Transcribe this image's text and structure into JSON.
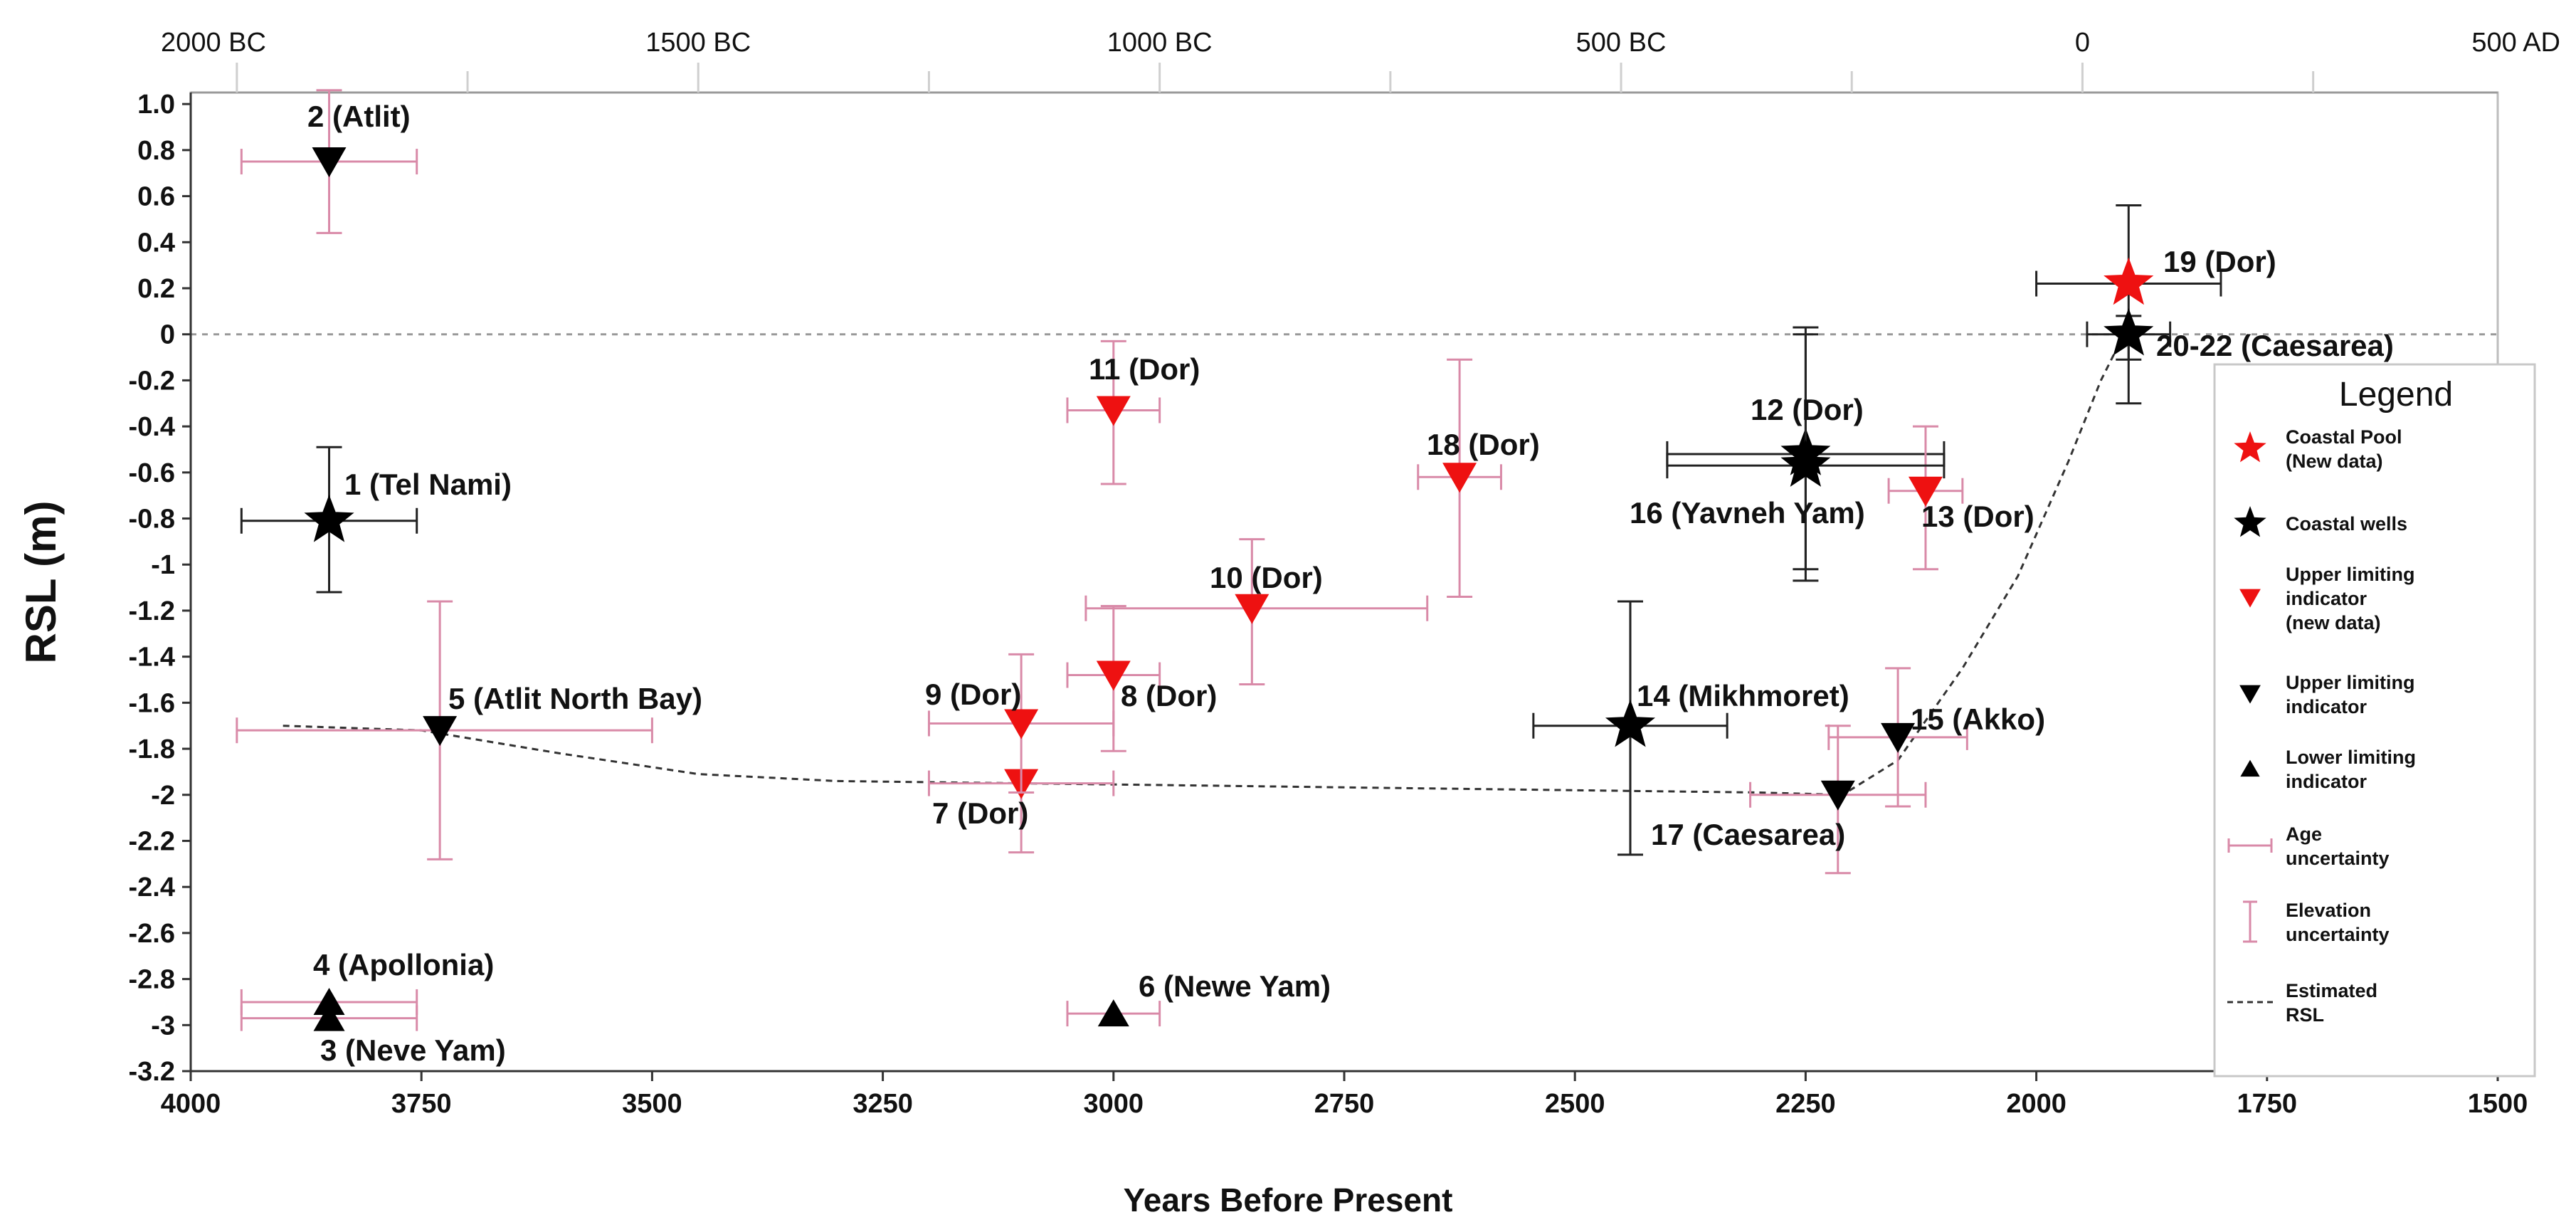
{
  "chart_data": {
    "type": "scatter",
    "xlabel": "Years Before Present",
    "ylabel": "RSL (m)",
    "xlim": [
      4000,
      1500
    ],
    "ylim": [
      -3.2,
      1.05
    ],
    "x_ticks": [
      4000,
      3750,
      3500,
      3250,
      3000,
      2750,
      2500,
      2250,
      2000,
      1750,
      1500
    ],
    "y_ticks": [
      "1.0",
      "0.8",
      "0.6",
      "0.4",
      "0.2",
      "0",
      "-0.2",
      "-0.4",
      "-0.6",
      "-0.8",
      "-1",
      "-1.2",
      "-1.4",
      "-1.6",
      "-1.8",
      "-2",
      "-2.2",
      "-2.4",
      "-2.6",
      "-2.8",
      "-3",
      "-3.2"
    ],
    "top_axis": [
      {
        "label": "2000 BC",
        "x": 3950
      },
      {
        "label": "1500 BC",
        "x": 3450
      },
      {
        "label": "1000 BC",
        "x": 2950
      },
      {
        "label": "500 BC",
        "x": 2450
      },
      {
        "label": "0",
        "x": 1950
      },
      {
        "label": "500 AD",
        "x": 1450
      }
    ],
    "top_minor_ticks": [
      3700,
      3200,
      2700,
      2200,
      1700
    ],
    "zero_line": 0,
    "points": [
      {
        "id": "1",
        "label": "1 (Tel Nami)",
        "site": "Tel Nami",
        "type": "well",
        "x": 3850,
        "y": -0.81,
        "xerr": 95,
        "yerr_hi": 0.32,
        "yerr_lo": 0.31,
        "color": "#000000"
      },
      {
        "id": "2",
        "label": "2 (Atlit)",
        "site": "Atlit",
        "type": "upper",
        "x": 3850,
        "y": 0.75,
        "xerr": 95,
        "yerr_hi": 0.31,
        "yerr_lo": 0.31,
        "color": "#000000"
      },
      {
        "id": "3",
        "label": "3 (Neve Yam)",
        "site": "Neve Yam",
        "type": "lower",
        "x": 3850,
        "y": -2.97,
        "xerr": 95,
        "color": "#000000"
      },
      {
        "id": "4",
        "label": "4 (Apollonia)",
        "site": "Apollonia",
        "type": "lower",
        "x": 3850,
        "y": -2.9,
        "xerr": 95,
        "color": "#000000"
      },
      {
        "id": "5",
        "label": "5 (Atlit North Bay)",
        "site": "Atlit North Bay",
        "type": "upper",
        "x": 3730,
        "y": -1.72,
        "xerr_left": 220,
        "xerr_right": 230,
        "yerr_hi": 0.56,
        "yerr_lo": 0.56,
        "color": "#000000"
      },
      {
        "id": "6",
        "label": "6 (Newe Yam)",
        "site": "Newe Yam",
        "type": "lower",
        "x": 3000,
        "y": -2.95,
        "xerr": 50,
        "color": "#000000"
      },
      {
        "id": "7",
        "label": "7 (Dor)",
        "site": "Dor",
        "type": "upper_new",
        "x": 3100,
        "y": -1.95,
        "xerr": 100,
        "yerr_hi": 0.0,
        "yerr_lo": 0.3,
        "color": "#ee1111"
      },
      {
        "id": "8",
        "label": "8 (Dor)",
        "site": "Dor",
        "type": "upper_new",
        "x": 3000,
        "y": -1.48,
        "xerr": 50,
        "yerr_hi": 0.3,
        "yerr_lo": 0.33,
        "color": "#ee1111"
      },
      {
        "id": "9",
        "label": "9 (Dor)",
        "site": "Dor",
        "type": "upper_new",
        "x": 3100,
        "y": -1.69,
        "xerr": 100,
        "yerr_hi": 0.3,
        "yerr_lo": 0.3,
        "color": "#ee1111"
      },
      {
        "id": "10",
        "label": "10 (Dor)",
        "site": "Dor",
        "type": "upper_new",
        "x": 2850,
        "y": -1.19,
        "xerr_left": 180,
        "xerr_right": 190,
        "yerr_hi": 0.3,
        "yerr_lo": 0.33,
        "color": "#ee1111"
      },
      {
        "id": "11",
        "label": "11 (Dor)",
        "site": "Dor",
        "type": "upper_new",
        "x": 3000,
        "y": -0.33,
        "xerr": 50,
        "yerr_hi": 0.3,
        "yerr_lo": 0.32,
        "color": "#ee1111"
      },
      {
        "id": "12",
        "label": "12 (Dor)",
        "site": "Dor",
        "type": "well",
        "x": 2250,
        "y": -0.52,
        "xerr": 150,
        "yerr_hi": 0.52,
        "yerr_lo": 0.5,
        "color": "#000000"
      },
      {
        "id": "13",
        "label": "13 (Dor)",
        "site": "Dor",
        "type": "upper_new",
        "x": 2120,
        "y": -0.68,
        "xerr": 40,
        "yerr_hi": 0.28,
        "yerr_lo": 0.34,
        "color": "#ee1111"
      },
      {
        "id": "14",
        "label": "14 (Mikhmoret)",
        "site": "Mikhmoret",
        "type": "well",
        "x": 2440,
        "y": -1.7,
        "xerr": 105,
        "yerr_hi": 0.54,
        "yerr_lo": 0.56,
        "color": "#000000"
      },
      {
        "id": "15",
        "label": "15 (Akko)",
        "site": "Akko",
        "type": "upper",
        "x": 2150,
        "y": -1.75,
        "xerr": 75,
        "yerr_hi": 0.3,
        "yerr_lo": 0.3,
        "color": "#000000"
      },
      {
        "id": "16",
        "label": "16 (Yavneh Yam)",
        "site": "Yavneh Yam",
        "type": "well",
        "x": 2250,
        "y": -0.57,
        "xerr": 150,
        "yerr_hi": 0.6,
        "yerr_lo": 0.5,
        "color": "#000000"
      },
      {
        "id": "17",
        "label": "17 (Caesarea)",
        "site": "Caesarea",
        "type": "upper",
        "x": 2215,
        "y": -2.0,
        "xerr": 95,
        "yerr_hi": 0.3,
        "yerr_lo": 0.34,
        "color": "#000000"
      },
      {
        "id": "19",
        "label": "19 (Dor)",
        "site": "Dor",
        "type": "pool_new",
        "x": 1900,
        "y": 0.22,
        "xerr": 100,
        "yerr_hi": 0.34,
        "yerr_lo": 0.33,
        "color": "#ee1111"
      },
      {
        "id": "18",
        "label": "18 (Dor)",
        "site": "Dor",
        "type": "upper_new",
        "x": 2625,
        "y": -0.62,
        "xerr": 45,
        "yerr_hi": 0.51,
        "yerr_lo": 0.52,
        "color": "#ee1111"
      },
      {
        "id": "20-22",
        "label": "20-22 (Caesarea)",
        "site": "Caesarea",
        "type": "well",
        "x": 1900,
        "y": 0.0,
        "xerr": 45,
        "yerr_hi": 0.08,
        "yerr_lo": 0.3,
        "color": "#000000"
      }
    ],
    "estimated_rsl": [
      {
        "x": 3900,
        "y": -1.7
      },
      {
        "x": 3750,
        "y": -1.72
      },
      {
        "x": 3600,
        "y": -1.82
      },
      {
        "x": 3450,
        "y": -1.91
      },
      {
        "x": 3300,
        "y": -1.94
      },
      {
        "x": 3100,
        "y": -1.95
      },
      {
        "x": 2900,
        "y": -1.96
      },
      {
        "x": 2700,
        "y": -1.97
      },
      {
        "x": 2500,
        "y": -1.98
      },
      {
        "x": 2300,
        "y": -1.99
      },
      {
        "x": 2210,
        "y": -2.0
      },
      {
        "x": 2150,
        "y": -1.85
      },
      {
        "x": 2080,
        "y": -1.45
      },
      {
        "x": 2020,
        "y": -1.05
      },
      {
        "x": 1965,
        "y": -0.55
      },
      {
        "x": 1930,
        "y": -0.2
      },
      {
        "x": 1905,
        "y": 0.0
      }
    ],
    "legend": {
      "title": "Legend",
      "items": [
        {
          "key": "pool_new",
          "lines": [
            "Coastal Pool",
            "(New data)"
          ],
          "color": "#ee1111"
        },
        {
          "key": "well",
          "lines": [
            "Coastal wells"
          ],
          "color": "#000000"
        },
        {
          "key": "upper_new",
          "lines": [
            "Upper limiting",
            "indicator",
            "(new data)"
          ],
          "color": "#ee1111"
        },
        {
          "key": "upper",
          "lines": [
            "Upper limiting",
            "indicator"
          ],
          "color": "#000000"
        },
        {
          "key": "lower",
          "lines": [
            "Lower limiting",
            "indicator"
          ],
          "color": "#000000"
        },
        {
          "key": "age_unc",
          "lines": [
            "Age",
            "uncertainty"
          ],
          "color": "#d98aa8"
        },
        {
          "key": "elev_unc",
          "lines": [
            "Elevation",
            "uncertainty"
          ],
          "color": "#d98aa8"
        },
        {
          "key": "est_rsl",
          "lines": [
            "Estimated",
            "RSL"
          ],
          "color": "#333333"
        }
      ]
    },
    "colors": {
      "new_data": "#ee1111",
      "existing": "#000000",
      "pink_errorbar": "#d98aa8",
      "black_errorbar": "#222222",
      "zero_line": "#999999"
    }
  }
}
